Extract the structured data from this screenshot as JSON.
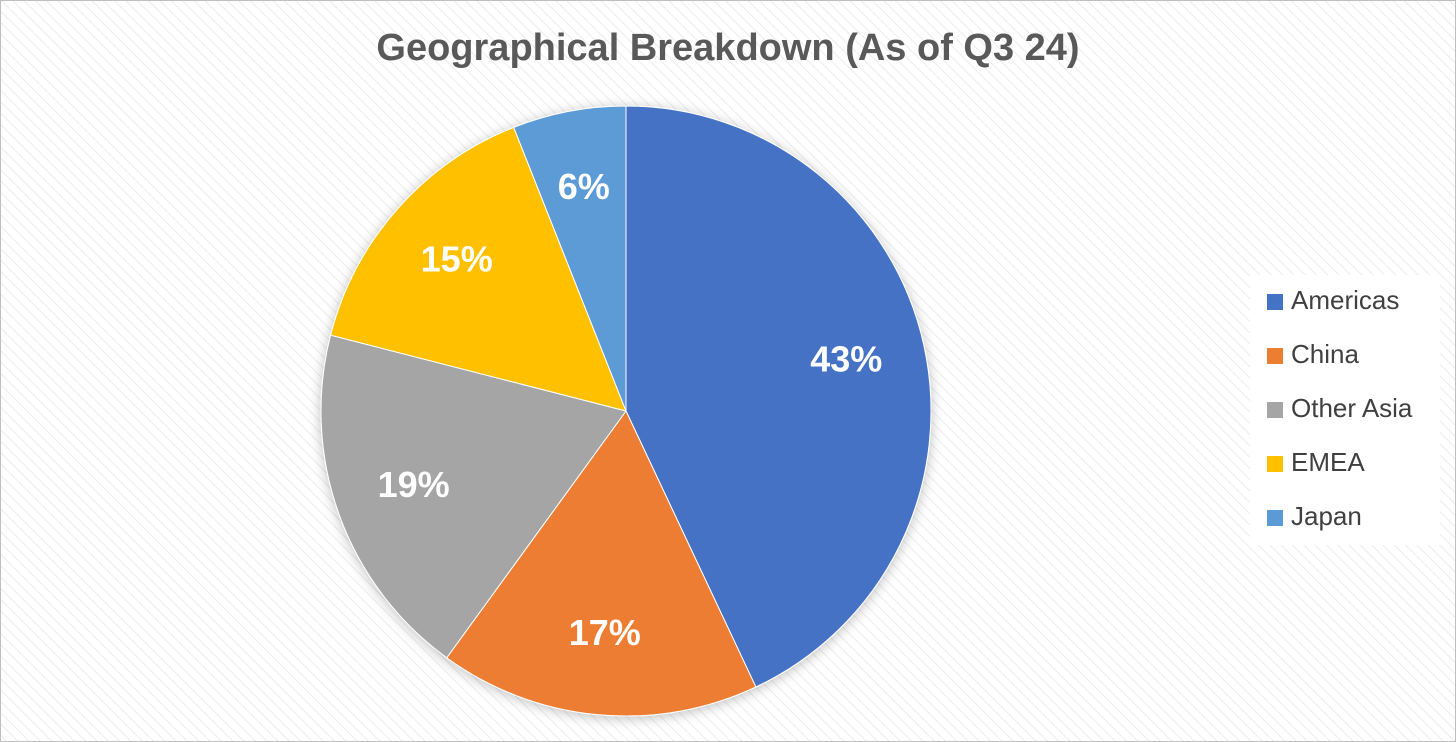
{
  "chart_data": {
    "type": "pie",
    "title": "Geographical Breakdown (As of Q3 24)",
    "categories": [
      "Americas",
      "China",
      "Other Asia",
      "EMEA",
      "Japan"
    ],
    "values": [
      43,
      17,
      19,
      15,
      6
    ],
    "value_labels": [
      "43%",
      "17%",
      "19%",
      "15%",
      "6%"
    ],
    "colors": [
      "#4472c4",
      "#ed7d31",
      "#a5a5a5",
      "#ffc000",
      "#5b9bd5"
    ],
    "legend": "right"
  }
}
